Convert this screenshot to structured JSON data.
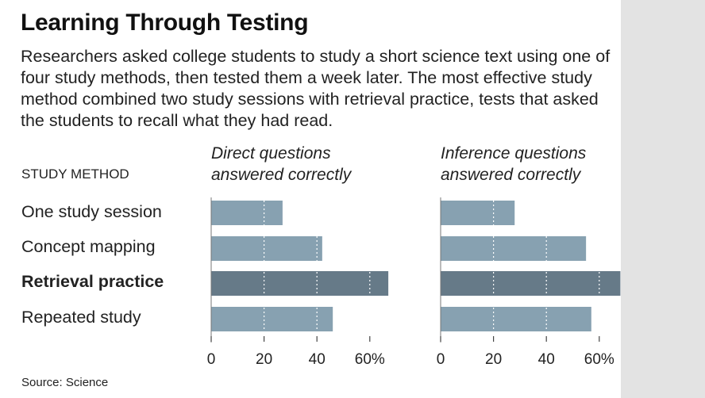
{
  "title": "Learning Through Testing",
  "description": "Researchers asked college students to study a short science text using one of four study methods, then tested them a week later. The most effective study method combined two study sessions with retrieval practice, tests that asked the students to recall what they had read.",
  "axis_title": "STUDY METHOD",
  "source": "Source: Science",
  "colors": {
    "bar": "#87a1b1",
    "bar_highlight": "#667a88",
    "gridline": "#ffffff"
  },
  "chart_data": [
    {
      "type": "bar",
      "orientation": "horizontal",
      "title": "Direct questions answered correctly",
      "categories": [
        "One study session",
        "Concept mapping",
        "Retrieval practice",
        "Repeated study"
      ],
      "values": [
        27,
        42,
        67,
        46
      ],
      "highlight_index": 2,
      "xlim": [
        0,
        70
      ],
      "ticks": [
        0,
        20,
        40,
        60
      ],
      "tick_labels": [
        "0",
        "20",
        "40",
        "60%"
      ]
    },
    {
      "type": "bar",
      "orientation": "horizontal",
      "title": "Inference questions answered correctly",
      "categories": [
        "One study session",
        "Concept mapping",
        "Retrieval practice",
        "Repeated study"
      ],
      "values": [
        28,
        55,
        68,
        57
      ],
      "highlight_index": 2,
      "xlim": [
        0,
        70
      ],
      "ticks": [
        0,
        20,
        40,
        60
      ],
      "tick_labels": [
        "0",
        "20",
        "40",
        "60%"
      ]
    }
  ]
}
